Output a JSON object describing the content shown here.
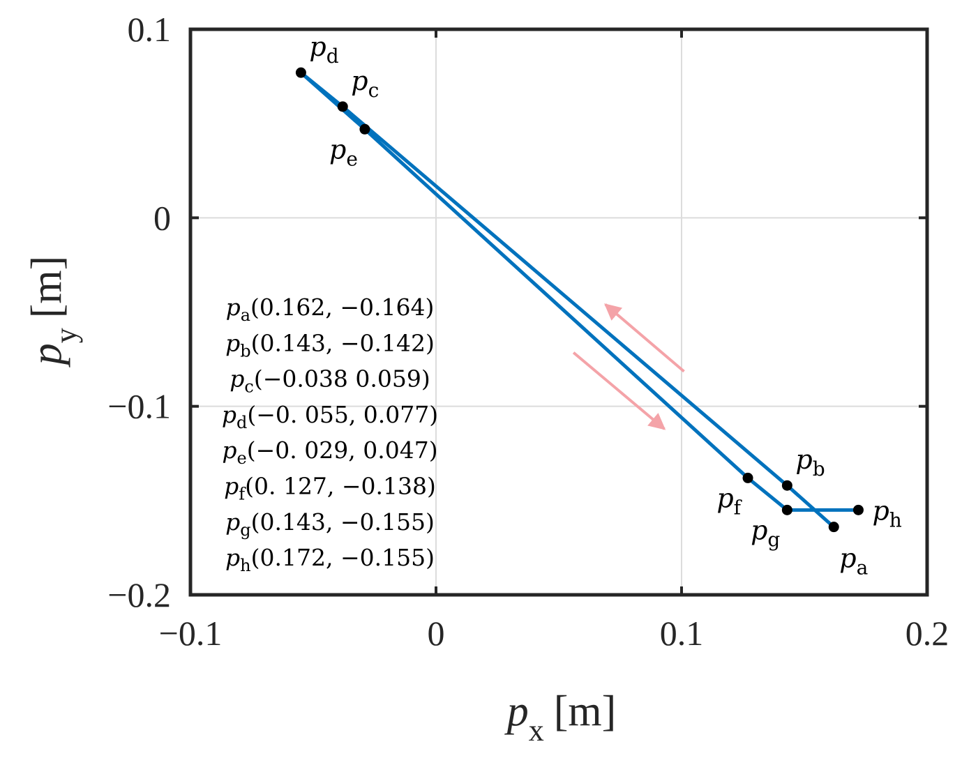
{
  "chart_data": {
    "type": "line",
    "title": "",
    "xlabel": {
      "symbol": "p",
      "subscript": "x",
      "unit": "[m]"
    },
    "ylabel": {
      "symbol": "p",
      "subscript": "y",
      "unit": "[m]"
    },
    "xlim": [
      -0.1,
      0.2
    ],
    "ylim": [
      -0.2,
      0.1
    ],
    "xticks": [
      -0.1,
      0,
      0.1,
      0.2
    ],
    "xtick_labels": [
      "−0.1",
      "0",
      "0.1",
      "0.2"
    ],
    "yticks": [
      -0.2,
      -0.1,
      0,
      0.1
    ],
    "ytick_labels": [
      "−0.2",
      "−0.1",
      "0",
      "0.1"
    ],
    "grid": true,
    "colors": {
      "line": "#0072BD",
      "marker": "#000000",
      "arrow": "#F4A3A8",
      "axes": "#262626",
      "grid": "#DCDCDC"
    },
    "series": [
      {
        "points": [
          {
            "x": 0.162,
            "y": -0.164
          },
          {
            "x": 0.143,
            "y": -0.142
          },
          {
            "x": -0.038,
            "y": 0.059
          },
          {
            "x": -0.055,
            "y": 0.077
          },
          {
            "x": -0.029,
            "y": 0.047
          },
          {
            "x": 0.127,
            "y": -0.138
          },
          {
            "x": 0.143,
            "y": -0.155
          },
          {
            "x": 0.172,
            "y": -0.155
          }
        ]
      }
    ],
    "markers": [
      {
        "key": "a",
        "x": 0.162,
        "y": -0.164,
        "label_pos": "below-right"
      },
      {
        "key": "b",
        "x": 0.143,
        "y": -0.142,
        "label_pos": "above-right"
      },
      {
        "key": "c",
        "x": -0.038,
        "y": 0.059,
        "label_pos": "above-right"
      },
      {
        "key": "d",
        "x": -0.055,
        "y": 0.077,
        "label_pos": "above-right"
      },
      {
        "key": "e",
        "x": -0.029,
        "y": 0.047,
        "label_pos": "below-left"
      },
      {
        "key": "f",
        "x": 0.127,
        "y": -0.138,
        "label_pos": "below-left"
      },
      {
        "key": "g",
        "x": 0.143,
        "y": -0.155,
        "label_pos": "below-left"
      },
      {
        "key": "h",
        "x": 0.172,
        "y": -0.155,
        "label_pos": "right"
      }
    ],
    "annotations": [
      {
        "key": "a",
        "coords": "(0.162, −0.164)"
      },
      {
        "key": "b",
        "coords": "(0.143, −0.142)"
      },
      {
        "key": "c",
        "coords": "(−0.038 0.059)"
      },
      {
        "key": "d",
        "coords": "(−0. 055, 0.077)"
      },
      {
        "key": "e",
        "coords": "(−0. 029, 0.047)"
      },
      {
        "key": "f",
        "coords": "(0. 127, −0.138)"
      },
      {
        "key": "g",
        "coords": "(0.143, −0.155)"
      },
      {
        "key": "h",
        "coords": "(0.172, −0.155)"
      }
    ],
    "point_symbol": "p",
    "arrows": [
      {
        "direction": "up-left",
        "from": {
          "x": 0.101,
          "y": -0.0815
        },
        "to": {
          "x": 0.069,
          "y": -0.046
        }
      },
      {
        "direction": "down-right",
        "from": {
          "x": 0.056,
          "y": -0.0715
        },
        "to": {
          "x": 0.093,
          "y": -0.112
        }
      }
    ]
  }
}
